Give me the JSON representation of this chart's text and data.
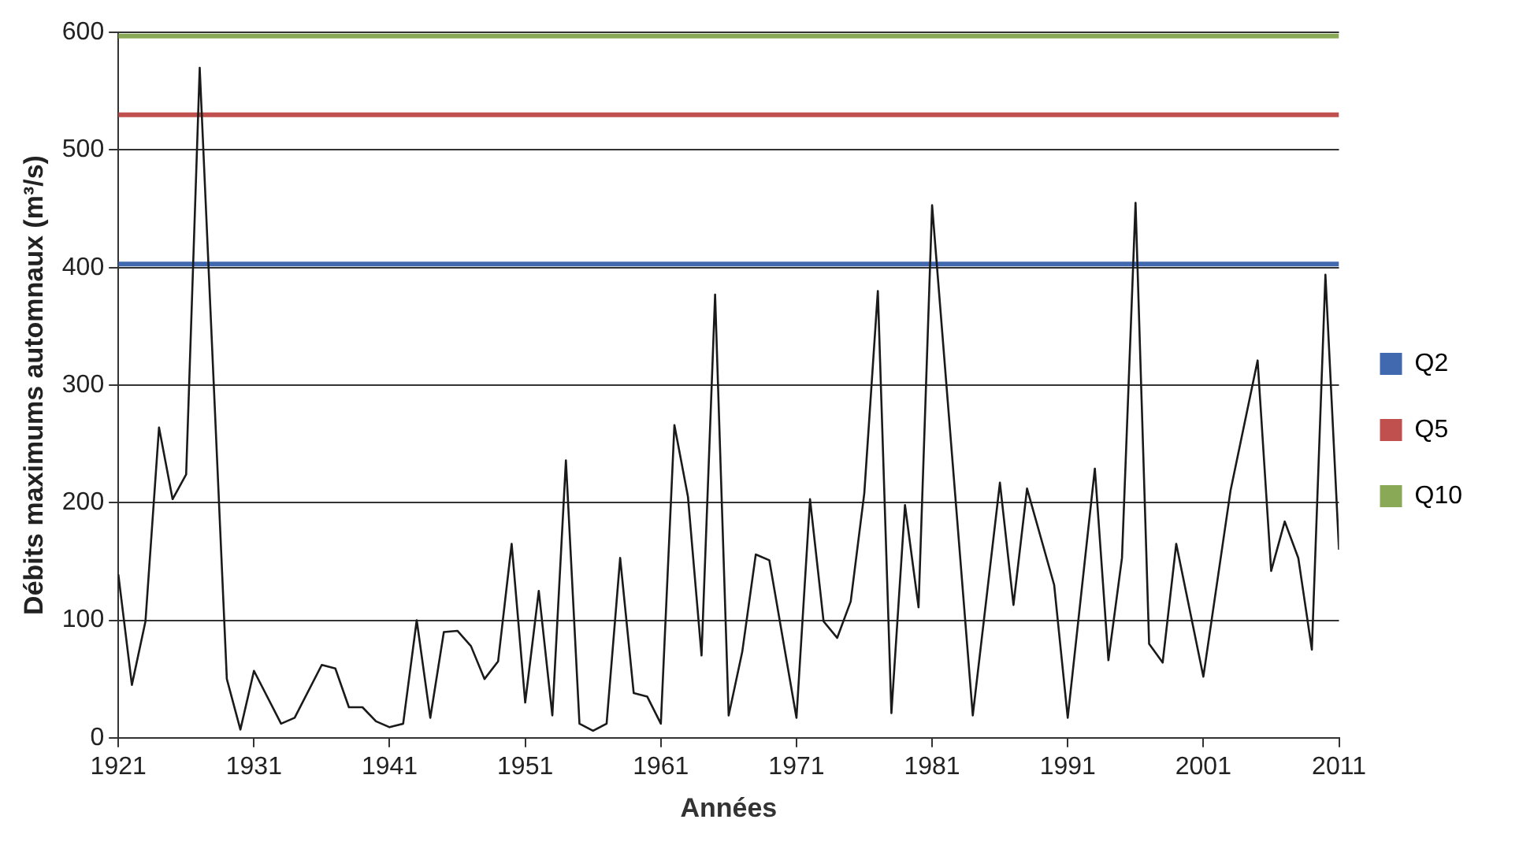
{
  "chart_data": {
    "type": "line",
    "xlabel": "Années",
    "ylabel": "Débits maximums automnaux (m³/s)",
    "xlim": [
      1921,
      2011
    ],
    "xticks": [
      1921,
      1931,
      1941,
      1951,
      1961,
      1971,
      1981,
      1991,
      2001,
      2011
    ],
    "ylim": [
      0,
      600
    ],
    "yticks": [
      0,
      100,
      200,
      300,
      400,
      500,
      600
    ],
    "grid": "y",
    "legend": "right",
    "marker": "none",
    "line_style": "solid",
    "series": [
      {
        "color": "#1a1a1a",
        "x": [
          1921,
          1922,
          1923,
          1924,
          1925,
          1926,
          1927,
          1929,
          1930,
          1931,
          1933,
          1934,
          1936,
          1937,
          1938,
          1939,
          1940,
          1941,
          1942,
          1943,
          1944,
          1945,
          1946,
          1947,
          1948,
          1949,
          1950,
          1951,
          1952,
          1953,
          1954,
          1955,
          1956,
          1957,
          1958,
          1959,
          1960,
          1961,
          1962,
          1963,
          1964,
          1965,
          1966,
          1967,
          1968,
          1969,
          1971,
          1972,
          1973,
          1974,
          1975,
          1976,
          1977,
          1978,
          1979,
          1980,
          1981,
          1984,
          1986,
          1987,
          1988,
          1990,
          1991,
          1993,
          1994,
          1995,
          1996,
          1997,
          1998,
          1999,
          2001,
          2003,
          2005,
          2006,
          2007,
          2008,
          2009,
          2010,
          2011
        ],
        "values": [
          139,
          45,
          99,
          264,
          203,
          224,
          570,
          50,
          7,
          57,
          12,
          17,
          62,
          59,
          26,
          26,
          14,
          9,
          12,
          100,
          17,
          90,
          91,
          78,
          50,
          65,
          165,
          30,
          125,
          19,
          236,
          12,
          6,
          12,
          153,
          38,
          35,
          12,
          266,
          205,
          70,
          377,
          19,
          73,
          156,
          151,
          17,
          203,
          99,
          85,
          116,
          208,
          380,
          21,
          198,
          111,
          453,
          19,
          217,
          113,
          212,
          130,
          17,
          229,
          66,
          153,
          455,
          80,
          64,
          165,
          52,
          210,
          321,
          142,
          184,
          153,
          75,
          394,
          160
        ]
      },
      {
        "name": "Q2",
        "color": "#4169b0",
        "x": [
          1921,
          2011
        ],
        "values": [
          403,
          403
        ]
      },
      {
        "name": "Q5",
        "color": "#c0504d",
        "x": [
          1921,
          2011
        ],
        "values": [
          530,
          530
        ]
      },
      {
        "name": "Q10",
        "color": "#8aa957",
        "x": [
          1921,
          2011
        ],
        "values": [
          597,
          597
        ]
      }
    ]
  }
}
